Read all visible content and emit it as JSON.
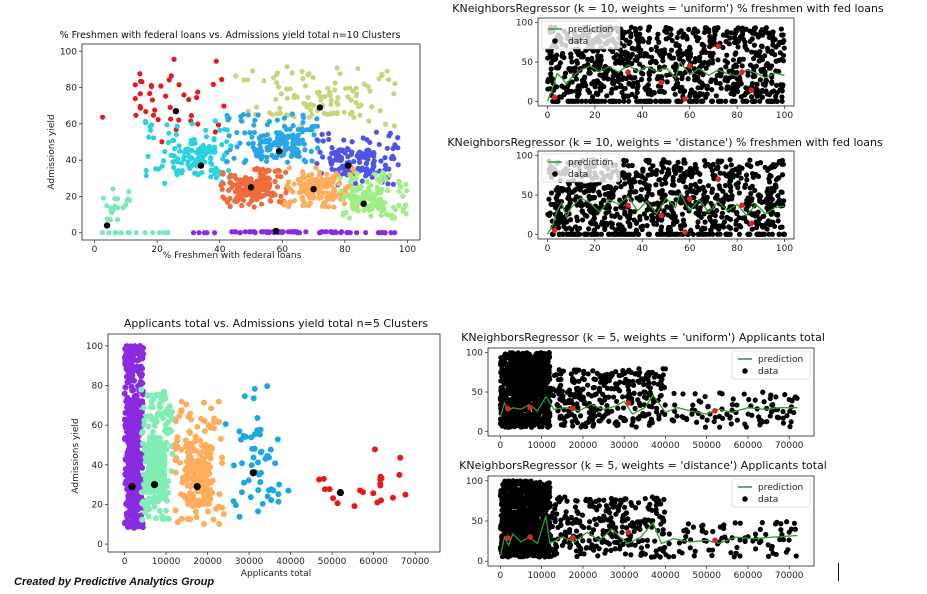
{
  "footer": {
    "credit": "Created by Predictive Analytics Group"
  },
  "chart_data": [
    {
      "id": "c1",
      "type": "scatter",
      "title": "% Freshmen with federal loans vs. Admissions yield total n=10 Clusters",
      "xlabel": "% Freshmen with federal loans",
      "ylabel": "Admissions yield",
      "xlim": [
        -4,
        104
      ],
      "ylim": [
        -4,
        104
      ],
      "xticks": [
        0,
        20,
        40,
        60,
        80,
        100
      ],
      "yticks": [
        0,
        20,
        40,
        60,
        80,
        100
      ],
      "point_radius": 2.6,
      "clusters": [
        {
          "color": "#e41a1c",
          "xr": [
            0,
            44
          ],
          "yr": [
            50,
            100
          ],
          "n": 42,
          "center": [
            26,
            67
          ]
        },
        {
          "color": "#c8d47c",
          "xr": [
            45,
            98
          ],
          "yr": [
            58,
            92
          ],
          "n": 110,
          "center": [
            72,
            69
          ]
        },
        {
          "color": "#2aa6e6",
          "xr": [
            42,
            72
          ],
          "yr": [
            38,
            66
          ],
          "n": 170,
          "center": [
            59,
            45
          ]
        },
        {
          "color": "#2ad2e0",
          "xr": [
            16,
            44
          ],
          "yr": [
            27,
            62
          ],
          "n": 140,
          "center": [
            34,
            37
          ]
        },
        {
          "color": "#4e54e8",
          "xr": [
            70,
            98
          ],
          "yr": [
            26,
            56
          ],
          "n": 150,
          "center": [
            81,
            37
          ]
        },
        {
          "color": "#f26b3a",
          "xr": [
            40,
            62
          ],
          "yr": [
            14,
            36
          ],
          "n": 180,
          "center": [
            50,
            25
          ]
        },
        {
          "color": "#ffad5c",
          "xr": [
            60,
            84
          ],
          "yr": [
            14,
            36
          ],
          "n": 170,
          "center": [
            70,
            24
          ]
        },
        {
          "color": "#9fef86",
          "xr": [
            78,
            100
          ],
          "yr": [
            8,
            34
          ],
          "n": 150,
          "center": [
            86,
            16
          ]
        },
        {
          "color": "#7ee7b8",
          "xr": [
            2,
            12
          ],
          "yr": [
            10,
            26
          ],
          "n": 22,
          "center": [
            4,
            4
          ]
        },
        {
          "color": "#8a2be2",
          "xr": [
            28,
            100
          ],
          "yr": [
            0,
            0.1
          ],
          "n": 70,
          "center": [
            58,
            1
          ]
        },
        {
          "color": "#7ee7b8",
          "xr": [
            0,
            25
          ],
          "yr": [
            0,
            0.1
          ],
          "n": 16,
          "center": null
        }
      ]
    },
    {
      "id": "c2",
      "type": "scatter",
      "title": "Applicants total vs. Admissions yield total n=5 Clusters",
      "xlabel": "Applicants total",
      "ylabel": "Admissions yield",
      "xlim": [
        -4000,
        76000
      ],
      "ylim": [
        -4,
        106
      ],
      "xticks": [
        0,
        10000,
        20000,
        30000,
        40000,
        50000,
        60000,
        70000
      ],
      "yticks": [
        0,
        20,
        40,
        60,
        80,
        100
      ],
      "point_radius": 3,
      "clusters": [
        {
          "color": "#8a2be2",
          "xr": [
            0,
            4500
          ],
          "yr": [
            8,
            100
          ],
          "n": 650,
          "center": [
            1800,
            29
          ]
        },
        {
          "color": "#80eeb4",
          "xr": [
            4000,
            12000
          ],
          "yr": [
            12,
            78
          ],
          "n": 300,
          "center": [
            7200,
            30
          ]
        },
        {
          "color": "#ffad5c",
          "xr": [
            12000,
            24000
          ],
          "yr": [
            10,
            72
          ],
          "n": 240,
          "center": [
            17500,
            29
          ]
        },
        {
          "color": "#1aa8e0",
          "xr": [
            24000,
            40000
          ],
          "yr": [
            12,
            80
          ],
          "n": 55,
          "center": [
            31000,
            36
          ]
        },
        {
          "color": "#e41a1c",
          "xr": [
            44000,
            72000
          ],
          "yr": [
            8,
            48
          ],
          "n": 22,
          "center": [
            52000,
            26
          ]
        }
      ]
    },
    {
      "id": "c3",
      "type": "scatter+line",
      "title": "KNeighborsRegressor (k = 10, weights = 'uniform') % freshmen with fed loans",
      "legend": [
        "prediction",
        "data"
      ],
      "legend_position": "top-left",
      "xlim": [
        -4,
        104
      ],
      "ylim": [
        -6,
        106
      ],
      "xticks": [
        0,
        20,
        40,
        60,
        80,
        100
      ],
      "yticks": [
        0,
        50,
        100
      ],
      "data_x": [
        0,
        100
      ],
      "data_y": [
        0,
        100
      ],
      "n": 900,
      "line": [
        [
          0,
          0
        ],
        [
          2,
          15
        ],
        [
          4,
          35
        ],
        [
          6,
          30
        ],
        [
          8,
          22
        ],
        [
          10,
          30
        ],
        [
          14,
          40
        ],
        [
          18,
          45
        ],
        [
          22,
          38
        ],
        [
          26,
          44
        ],
        [
          30,
          37
        ],
        [
          34,
          46
        ],
        [
          38,
          38
        ],
        [
          42,
          44
        ],
        [
          46,
          38
        ],
        [
          50,
          43
        ],
        [
          54,
          30
        ],
        [
          56,
          50
        ],
        [
          60,
          34
        ],
        [
          64,
          42
        ],
        [
          68,
          33
        ],
        [
          72,
          40
        ],
        [
          76,
          35
        ],
        [
          80,
          32
        ],
        [
          84,
          40
        ],
        [
          88,
          36
        ],
        [
          92,
          30
        ],
        [
          96,
          36
        ],
        [
          100,
          33
        ]
      ],
      "centers": [
        [
          3,
          5
        ],
        [
          34,
          37
        ],
        [
          48,
          24
        ],
        [
          58,
          3
        ],
        [
          60,
          45
        ],
        [
          72,
          70
        ],
        [
          82,
          37
        ],
        [
          86,
          14
        ]
      ]
    },
    {
      "id": "c4",
      "type": "scatter+line",
      "title": "KNeighborsRegressor (k = 10, weights = 'distance') % freshmen with fed loans",
      "legend": [
        "prediction",
        "data"
      ],
      "legend_position": "top-left",
      "xlim": [
        -4,
        104
      ],
      "ylim": [
        -6,
        106
      ],
      "xticks": [
        0,
        20,
        40,
        60,
        80,
        100
      ],
      "yticks": [
        0,
        50,
        100
      ],
      "data_x": [
        0,
        100
      ],
      "data_y": [
        0,
        100
      ],
      "n": 900,
      "line": [
        [
          0,
          0
        ],
        [
          2,
          10
        ],
        [
          4,
          30
        ],
        [
          6,
          40
        ],
        [
          8,
          22
        ],
        [
          10,
          34
        ],
        [
          14,
          46
        ],
        [
          18,
          40
        ],
        [
          22,
          28
        ],
        [
          26,
          44
        ],
        [
          30,
          38
        ],
        [
          34,
          48
        ],
        [
          38,
          30
        ],
        [
          42,
          42
        ],
        [
          46,
          26
        ],
        [
          50,
          46
        ],
        [
          54,
          34
        ],
        [
          56,
          52
        ],
        [
          60,
          30
        ],
        [
          64,
          44
        ],
        [
          68,
          28
        ],
        [
          72,
          42
        ],
        [
          76,
          30
        ],
        [
          80,
          38
        ],
        [
          84,
          24
        ],
        [
          88,
          38
        ],
        [
          92,
          26
        ],
        [
          96,
          34
        ],
        [
          100,
          36
        ]
      ],
      "centers": [
        [
          3,
          5
        ],
        [
          34,
          37
        ],
        [
          48,
          24
        ],
        [
          58,
          3
        ],
        [
          60,
          45
        ],
        [
          72,
          70
        ],
        [
          82,
          37
        ],
        [
          86,
          14
        ]
      ]
    },
    {
      "id": "c5",
      "type": "scatter+line",
      "title": "KNeighborsRegressor (k = 5, weights = 'uniform') Applicants total",
      "legend": [
        "prediction",
        "data"
      ],
      "legend_position": "top-right",
      "xlim": [
        -3000,
        76000
      ],
      "ylim": [
        -6,
        106
      ],
      "xticks": [
        0,
        10000,
        20000,
        30000,
        40000,
        50000,
        60000,
        70000
      ],
      "yticks": [
        0,
        50,
        100
      ],
      "data_x": [
        0,
        72000
      ],
      "data_y": [
        0,
        100
      ],
      "n": 1300,
      "line": [
        [
          0,
          18
        ],
        [
          1000,
          36
        ],
        [
          2000,
          26
        ],
        [
          3000,
          30
        ],
        [
          5000,
          28
        ],
        [
          7000,
          34
        ],
        [
          9000,
          26
        ],
        [
          11000,
          44
        ],
        [
          13000,
          28
        ],
        [
          16000,
          30
        ],
        [
          19000,
          26
        ],
        [
          22000,
          34
        ],
        [
          25000,
          28
        ],
        [
          28000,
          32
        ],
        [
          30000,
          38
        ],
        [
          32000,
          22
        ],
        [
          35000,
          30
        ],
        [
          37000,
          46
        ],
        [
          40000,
          24
        ],
        [
          43000,
          30
        ],
        [
          46000,
          26
        ],
        [
          50000,
          22
        ],
        [
          53000,
          28
        ],
        [
          56000,
          24
        ],
        [
          60000,
          30
        ],
        [
          64000,
          28
        ],
        [
          68000,
          30
        ],
        [
          72000,
          30
        ]
      ],
      "centers": [
        [
          1800,
          29
        ],
        [
          7200,
          30
        ],
        [
          17500,
          29
        ],
        [
          31000,
          36
        ],
        [
          52000,
          26
        ]
      ]
    },
    {
      "id": "c6",
      "type": "scatter+line",
      "title": "KNeighborsRegressor (k = 5, weights = 'distance') Applicants total",
      "legend": [
        "prediction",
        "data"
      ],
      "legend_position": "top-right",
      "xlim": [
        -3000,
        76000
      ],
      "ylim": [
        -6,
        106
      ],
      "xticks": [
        0,
        10000,
        20000,
        30000,
        40000,
        50000,
        60000,
        70000
      ],
      "yticks": [
        0,
        50,
        100
      ],
      "data_x": [
        0,
        72000
      ],
      "data_y": [
        0,
        100
      ],
      "n": 1300,
      "line": [
        [
          0,
          6
        ],
        [
          1000,
          30
        ],
        [
          2000,
          20
        ],
        [
          3000,
          34
        ],
        [
          5000,
          24
        ],
        [
          7000,
          30
        ],
        [
          9000,
          22
        ],
        [
          11000,
          56
        ],
        [
          12000,
          22
        ],
        [
          15000,
          30
        ],
        [
          18000,
          24
        ],
        [
          21000,
          36
        ],
        [
          24000,
          26
        ],
        [
          27000,
          40
        ],
        [
          29000,
          30
        ],
        [
          31000,
          22
        ],
        [
          34000,
          30
        ],
        [
          37000,
          48
        ],
        [
          39000,
          22
        ],
        [
          42000,
          28
        ],
        [
          46000,
          24
        ],
        [
          50000,
          26
        ],
        [
          53000,
          22
        ],
        [
          57000,
          30
        ],
        [
          61000,
          28
        ],
        [
          66000,
          30
        ],
        [
          72000,
          32
        ]
      ],
      "centers": [
        [
          1800,
          29
        ],
        [
          7200,
          30
        ],
        [
          17500,
          29
        ],
        [
          31000,
          36
        ],
        [
          52000,
          26
        ]
      ]
    }
  ]
}
